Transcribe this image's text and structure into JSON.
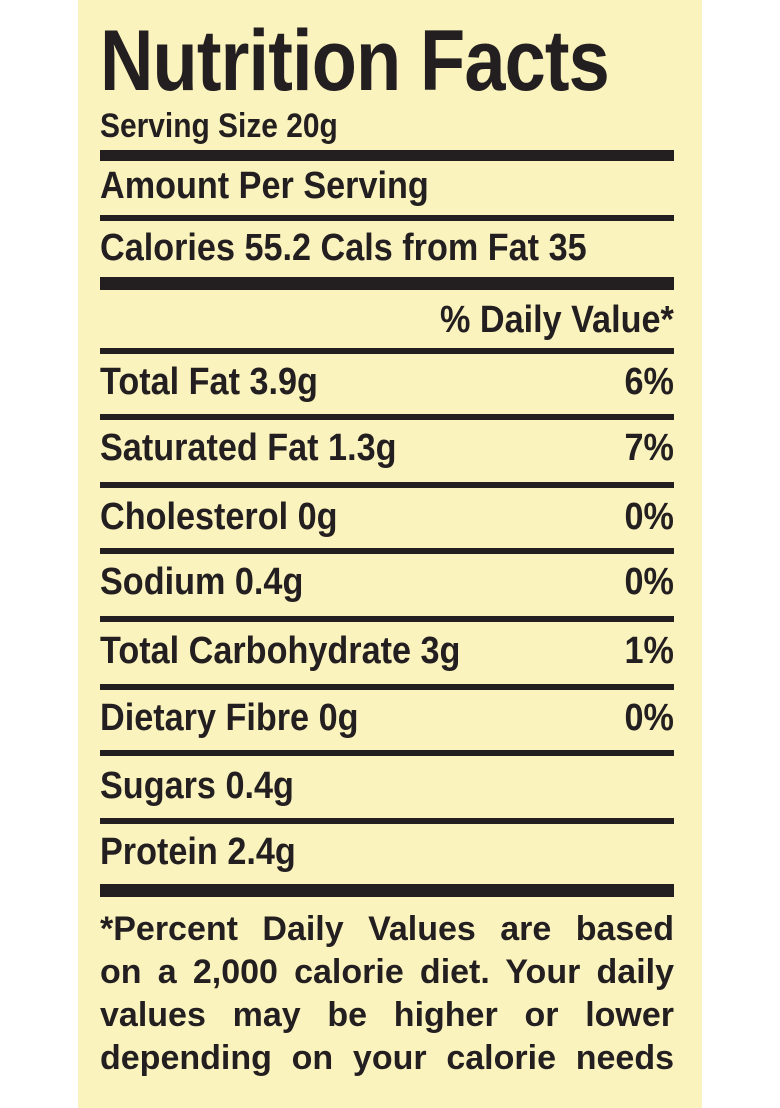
{
  "title": "Nutrition Facts",
  "serving_size": "Serving Size 20g",
  "amount_per_serving": "Amount Per Serving",
  "calories_line": "Calories 55.2  Cals from Fat 35",
  "daily_value_header": "% Daily Value*",
  "nutrients": [
    {
      "label": "Total Fat  3.9g",
      "dv": "6%"
    },
    {
      "label": "Saturated Fat 1.3g",
      "dv": "7%"
    },
    {
      "label": "Cholesterol 0g",
      "dv": "0%"
    },
    {
      "label": "Sodium 0.4g",
      "dv": "0%"
    },
    {
      "label": "Total Carbohydrate 3g",
      "dv": "1%"
    },
    {
      "label": "Dietary Fibre 0g",
      "dv": "0%"
    },
    {
      "label": "Sugars 0.4g",
      "dv": ""
    },
    {
      "label": "Protein 2.4g",
      "dv": ""
    }
  ],
  "footnote_lines": [
    "*Percent Daily Values are based",
    "on a 2,000 calorie diet. Your daily",
    "values may be higher or lower",
    "depending on your calorie needs"
  ],
  "colors": {
    "background": "#fbf3bd",
    "ink": "#231f20"
  }
}
